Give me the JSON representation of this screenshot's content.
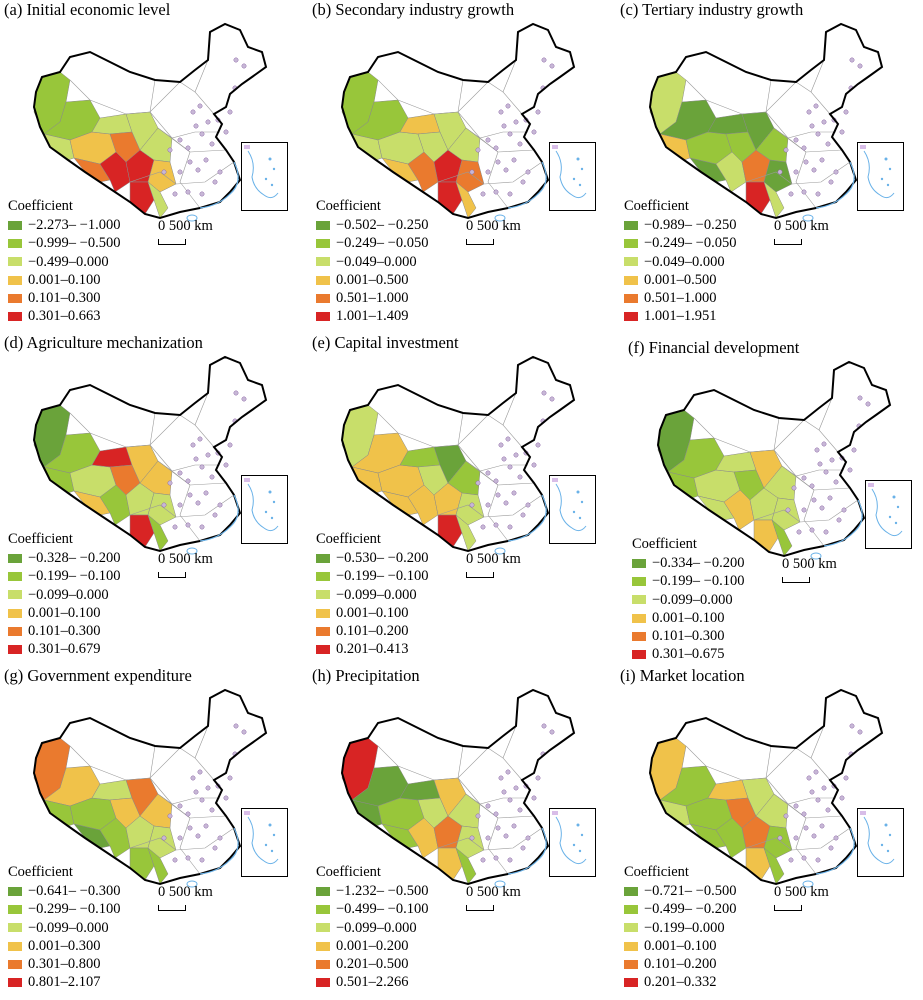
{
  "legend_title": "Coefficient",
  "scale_label": "0 500 km",
  "class_colors": [
    "#6aa33a",
    "#98c63a",
    "#c8de6a",
    "#f0c24a",
    "#ea7a2e",
    "#d82424"
  ],
  "panels": [
    {
      "title": "(a) Initial economic level",
      "classes": [
        "−2.273– −1.000",
        "−0.999– −0.500",
        "−0.499–0.000",
        "0.001–0.100",
        "0.101–0.300",
        "0.301–0.663"
      ]
    },
    {
      "title": "(b) Secondary industry growth",
      "classes": [
        "−0.502– −0.250",
        "−0.249– −0.050",
        "−0.049–0.000",
        "0.001–0.500",
        "0.501–1.000",
        "1.001–1.409"
      ]
    },
    {
      "title": "(c) Tertiary industry growth",
      "classes": [
        "−0.989– −0.250",
        "−0.249– −0.050",
        "−0.049–0.000",
        "0.001–0.500",
        "0.501–1.000",
        "1.001–1.951"
      ]
    },
    {
      "title": "(d) Agriculture mechanization",
      "classes": [
        "−0.328– −0.200",
        "−0.199– −0.100",
        "−0.099–0.000",
        "0.001–0.100",
        "0.101–0.300",
        "0.301–0.679"
      ]
    },
    {
      "title": "(e) Capital investment",
      "classes": [
        "−0.530– −0.200",
        "−0.199– −0.100",
        "−0.099–0.000",
        "0.001–0.100",
        "0.101–0.200",
        "0.201–0.413"
      ]
    },
    {
      "title": "(f) Financial development",
      "classes": [
        "−0.334– −0.200",
        "−0.199– −0.100",
        "−0.099–0.000",
        "0.001–0.100",
        "0.101–0.300",
        "0.301–0.675"
      ]
    },
    {
      "title": "(g) Government expenditure",
      "classes": [
        "−0.641– −0.300",
        "−0.299– −0.100",
        "−0.099–0.000",
        "0.001–0.300",
        "0.301–0.800",
        "0.801–2.107"
      ]
    },
    {
      "title": "(h) Precipitation",
      "classes": [
        "−1.232– −0.500",
        "−0.499– −0.100",
        "−0.099–0.000",
        "0.001–0.200",
        "0.201–0.500",
        "0.501–2.266"
      ]
    },
    {
      "title": "(i) Market location",
      "classes": [
        "−0.721– −0.500",
        "−0.499– −0.200",
        "−0.199–0.000",
        "0.001–0.100",
        "0.101–0.200",
        "0.201–0.332"
      ]
    }
  ]
}
